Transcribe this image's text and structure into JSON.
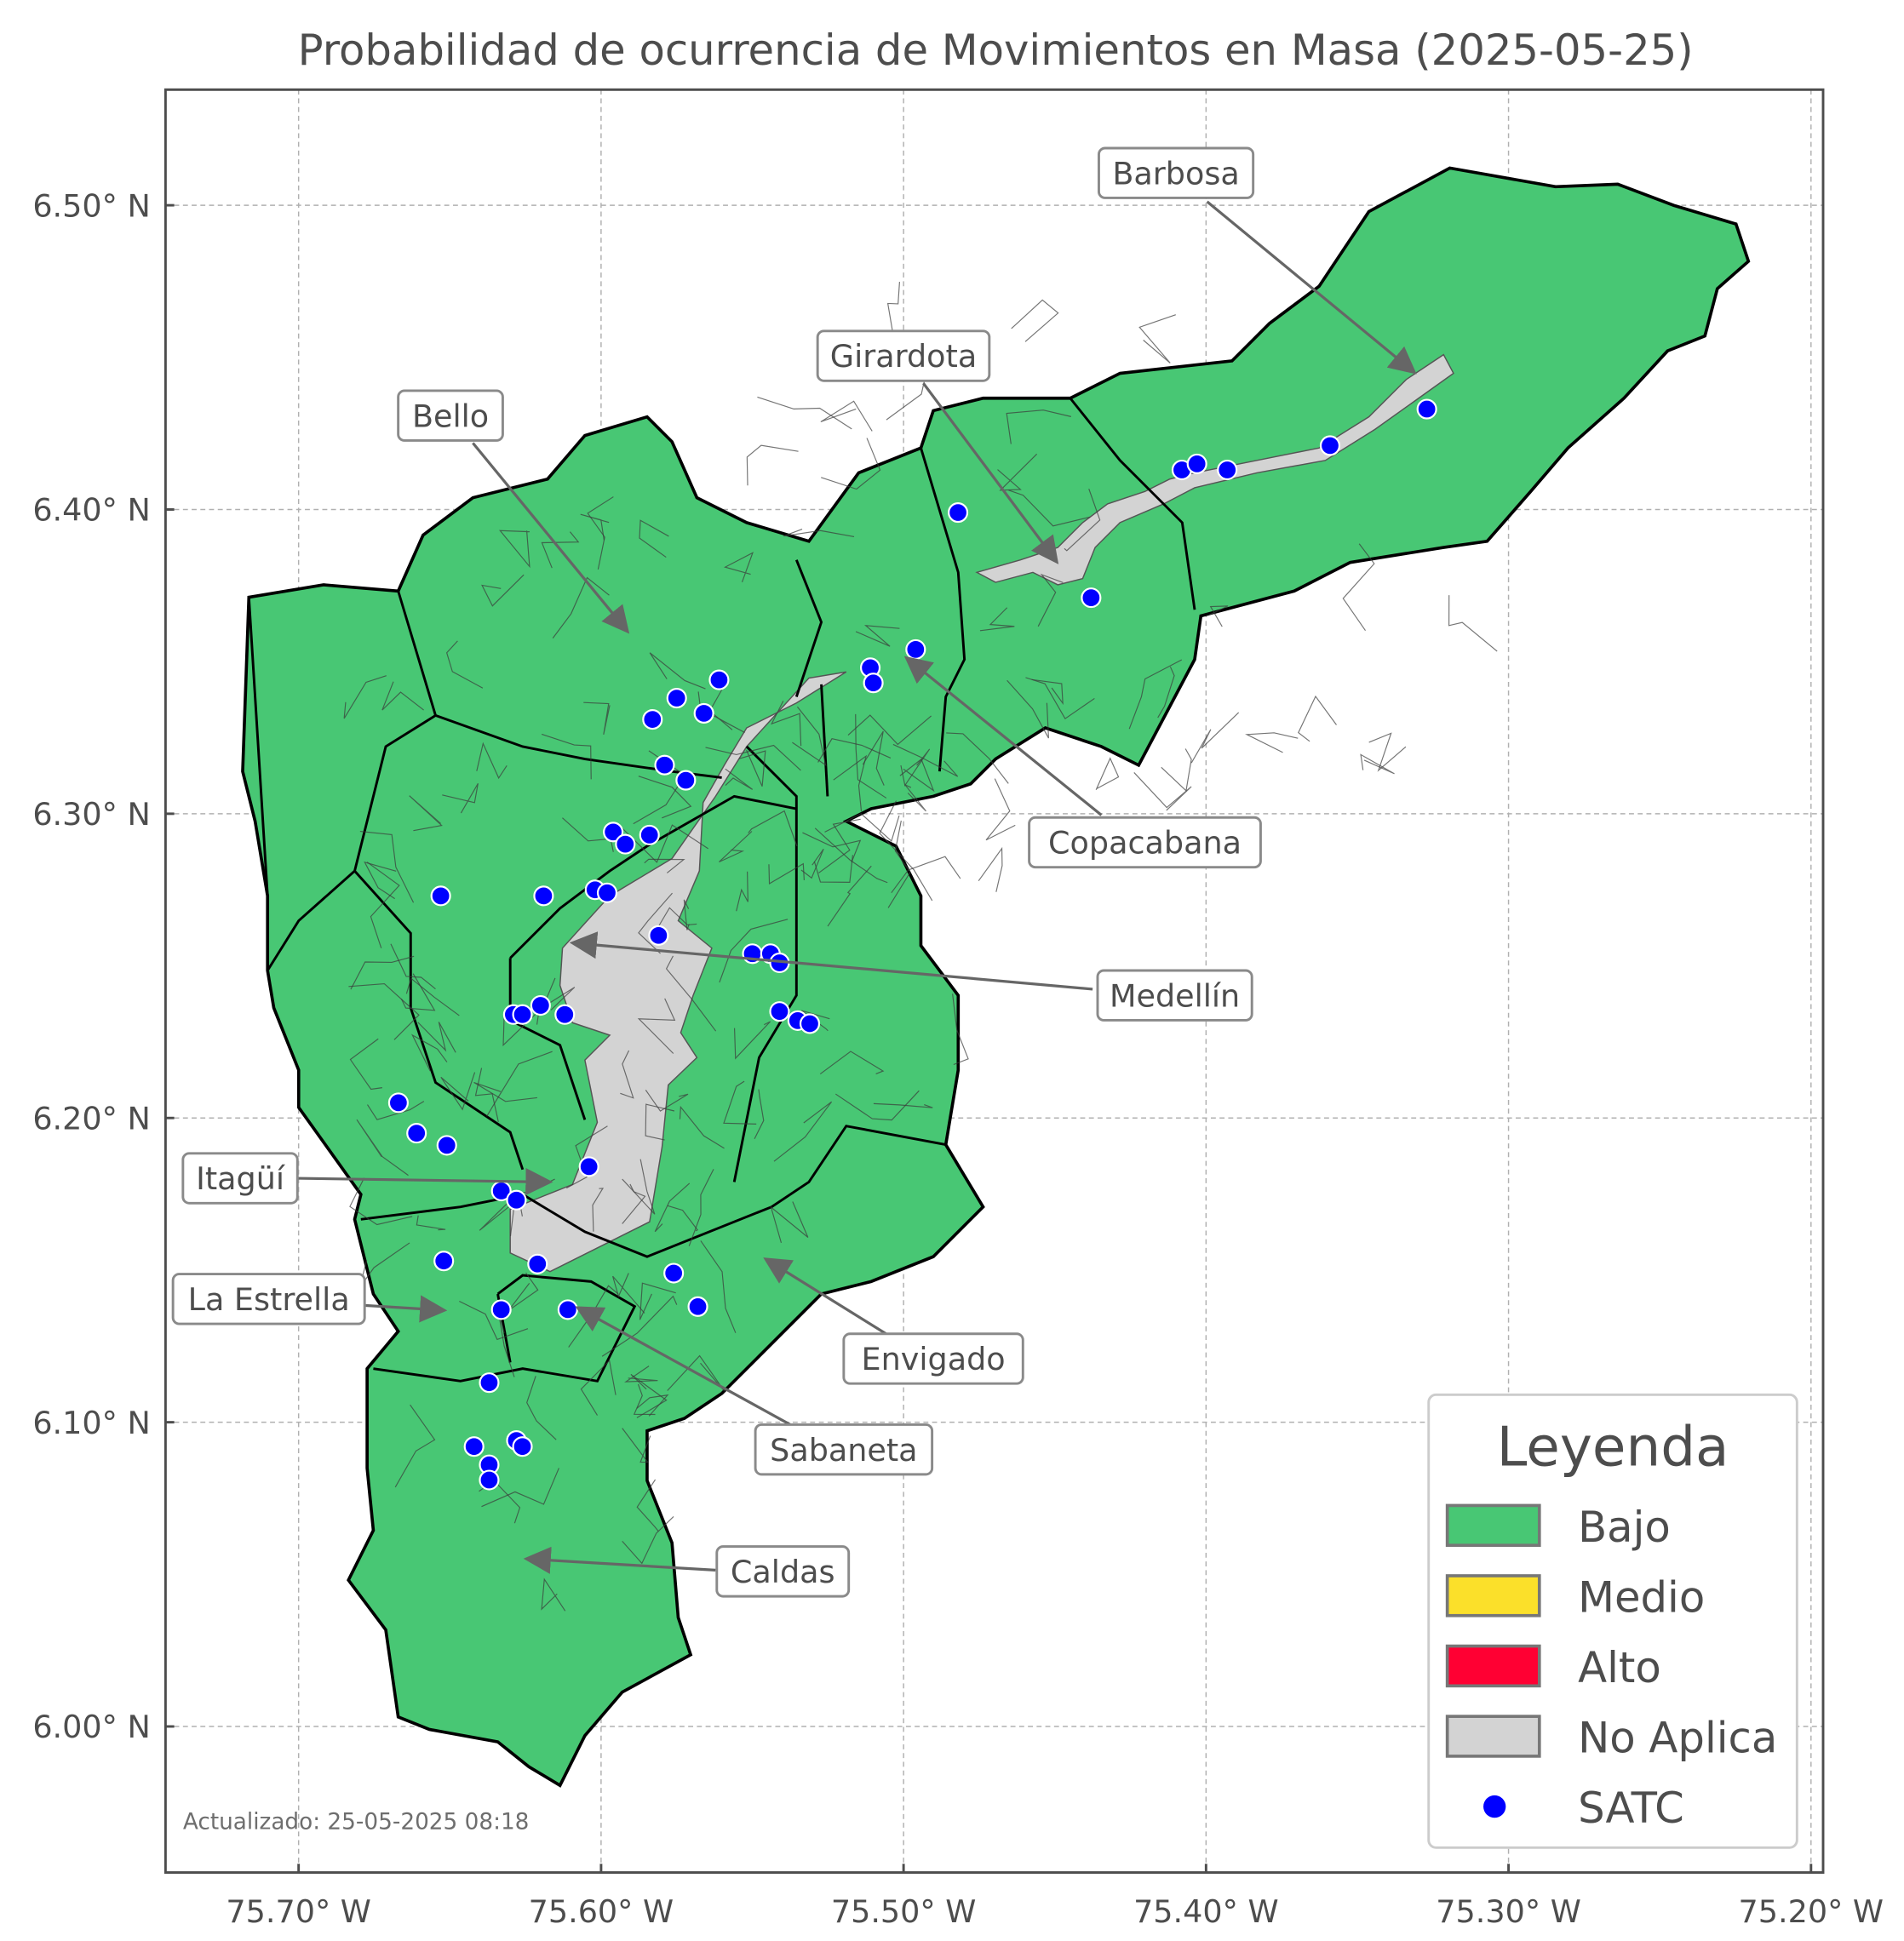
{
  "title": "Probabilidad de ocurrencia de Movimientos en Masa (2025-05-25)",
  "footer": "Actualizado: 25-05-2025 08:18",
  "axes": {
    "x_ticks": [
      "75.70° W",
      "75.60° W",
      "75.50° W",
      "75.40° W",
      "75.30° W",
      "75.20° W"
    ],
    "x_tick_values": [
      -75.7,
      -75.6,
      -75.5,
      -75.4,
      -75.3,
      -75.2
    ],
    "y_ticks": [
      "6.50° N",
      "6.40° N",
      "6.30° N",
      "6.20° N",
      "6.10° N",
      "6.00° N"
    ],
    "y_tick_values": [
      6.5,
      6.4,
      6.3,
      6.2,
      6.1,
      6.0
    ],
    "xlim": [
      -75.744,
      -75.196
    ],
    "ylim": [
      5.952,
      6.538
    ],
    "grid": true
  },
  "colors": {
    "Bajo": "#48c774",
    "Medio": "#fbe02a",
    "Alto": "#ff0033",
    "No Aplica": "#d3d3d3",
    "SATC": "#0000ff"
  },
  "legend": {
    "title": "Leyenda",
    "placement": "bottom-right",
    "items": [
      {
        "label": "Bajo",
        "kind": "patch",
        "color": "#48c774"
      },
      {
        "label": "Medio",
        "kind": "patch",
        "color": "#fbe02a"
      },
      {
        "label": "Alto",
        "kind": "patch",
        "color": "#ff0033"
      },
      {
        "label": "No Aplica",
        "kind": "patch",
        "color": "#d3d3d3"
      },
      {
        "label": "SATC",
        "kind": "point",
        "color": "#0000ff"
      }
    ]
  },
  "municipalities": [
    {
      "name": "Barbosa",
      "level": "Bajo"
    },
    {
      "name": "Girardota",
      "level": "Bajo"
    },
    {
      "name": "Bello",
      "level": "Bajo"
    },
    {
      "name": "Copacabana",
      "level": "Bajo"
    },
    {
      "name": "Medellín",
      "level": "Bajo"
    },
    {
      "name": "Itagüí",
      "level": "Bajo"
    },
    {
      "name": "La Estrella",
      "level": "Bajo"
    },
    {
      "name": "Envigado",
      "level": "Bajo"
    },
    {
      "name": "Sabaneta",
      "level": "Bajo"
    },
    {
      "name": "Caldas",
      "level": "Bajo"
    }
  ],
  "satc_points": [
    [
      -75.482,
      6.399
    ],
    [
      -75.408,
      6.413
    ],
    [
      -75.403,
      6.415
    ],
    [
      -75.393,
      6.413
    ],
    [
      -75.359,
      6.421
    ],
    [
      -75.327,
      6.433
    ],
    [
      -75.438,
      6.371
    ],
    [
      -75.496,
      6.354
    ],
    [
      -75.511,
      6.348
    ],
    [
      -75.51,
      6.343
    ],
    [
      -75.561,
      6.344
    ],
    [
      -75.575,
      6.338
    ],
    [
      -75.566,
      6.333
    ],
    [
      -75.583,
      6.331
    ],
    [
      -75.579,
      6.316
    ],
    [
      -75.572,
      6.311
    ],
    [
      -75.596,
      6.294
    ],
    [
      -75.592,
      6.29
    ],
    [
      -75.584,
      6.293
    ],
    [
      -75.619,
      6.273
    ],
    [
      -75.653,
      6.273
    ],
    [
      -75.602,
      6.275
    ],
    [
      -75.598,
      6.274
    ],
    [
      -75.581,
      6.26
    ],
    [
      -75.55,
      6.254
    ],
    [
      -75.544,
      6.254
    ],
    [
      -75.541,
      6.251
    ],
    [
      -75.541,
      6.235
    ],
    [
      -75.535,
      6.232
    ],
    [
      -75.531,
      6.231
    ],
    [
      -75.62,
      6.237
    ],
    [
      -75.629,
      6.234
    ],
    [
      -75.626,
      6.234
    ],
    [
      -75.612,
      6.234
    ],
    [
      -75.667,
      6.205
    ],
    [
      -75.661,
      6.195
    ],
    [
      -75.651,
      6.191
    ],
    [
      -75.604,
      6.184
    ],
    [
      -75.633,
      6.176
    ],
    [
      -75.628,
      6.173
    ],
    [
      -75.652,
      6.153
    ],
    [
      -75.621,
      6.152
    ],
    [
      -75.576,
      6.149
    ],
    [
      -75.568,
      6.138
    ],
    [
      -75.633,
      6.137
    ],
    [
      -75.611,
      6.137
    ],
    [
      -75.637,
      6.113
    ],
    [
      -75.642,
      6.092
    ],
    [
      -75.628,
      6.094
    ],
    [
      -75.626,
      6.092
    ],
    [
      -75.637,
      6.086
    ],
    [
      -75.637,
      6.081
    ]
  ]
}
